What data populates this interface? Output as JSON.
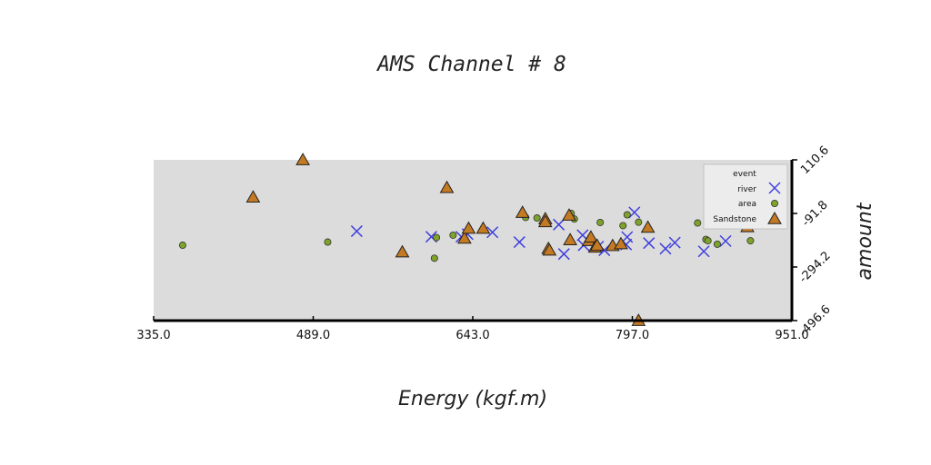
{
  "chart_data": {
    "type": "scatter",
    "title": "AMS Channel # 8",
    "xlabel": "Energy (kgf.m)",
    "ylabel": "amount",
    "xlim": [
      335.0,
      951.0
    ],
    "ylim": [
      -496.6,
      110.6
    ],
    "xticks": [
      "335.0",
      "489.0",
      "643.0",
      "797.0",
      "951.0"
    ],
    "yticks": [
      "110.6",
      "-91.8",
      "-294.2",
      "-496.6"
    ],
    "xtick_values": [
      335.0,
      489.0,
      643.0,
      797.0,
      951.0
    ],
    "ytick_values": [
      110.6,
      -91.8,
      -294.2,
      -496.6
    ],
    "grid": false,
    "background": "#dcdcdc",
    "legend": {
      "title": "event",
      "position": "top-right"
    },
    "series": [
      {
        "name": "river",
        "marker": "x",
        "color": "#4040dd",
        "points": [
          [
            531,
            -159
          ],
          [
            603,
            -180
          ],
          [
            632,
            -180
          ],
          [
            638,
            -170
          ],
          [
            662,
            -163
          ],
          [
            688,
            -200
          ],
          [
            726,
            -134
          ],
          [
            731,
            -245
          ],
          [
            749,
            -174
          ],
          [
            750,
            -212
          ],
          [
            764,
            -217
          ],
          [
            770,
            -231
          ],
          [
            791,
            -209
          ],
          [
            792,
            -181
          ],
          [
            799,
            -88
          ],
          [
            813,
            -204
          ],
          [
            829,
            -225
          ],
          [
            838,
            -202
          ],
          [
            866,
            -235
          ],
          [
            887,
            -196
          ]
        ]
      },
      {
        "name": "area",
        "marker": "o",
        "color": "#7da32a",
        "points": [
          [
            363,
            -212
          ],
          [
            503,
            -200
          ],
          [
            606,
            -261
          ],
          [
            608,
            -183
          ],
          [
            624,
            -174
          ],
          [
            694,
            -107
          ],
          [
            705,
            -109
          ],
          [
            738,
            -92
          ],
          [
            741,
            -113
          ],
          [
            766,
            -126
          ],
          [
            788,
            -138
          ],
          [
            792,
            -97
          ],
          [
            803,
            -125
          ],
          [
            860,
            -128
          ],
          [
            868,
            -190
          ],
          [
            870,
            -195
          ],
          [
            877,
            -75
          ],
          [
            879,
            -208
          ],
          [
            888,
            -126
          ],
          [
            911,
            -195
          ],
          [
            924,
            -116
          ]
        ]
      },
      {
        "name": "Sandstone",
        "marker": "^",
        "color": "#c47a22",
        "points": [
          [
            431,
            -31
          ],
          [
            479,
            110
          ],
          [
            575,
            -238
          ],
          [
            618,
            5
          ],
          [
            635,
            -186
          ],
          [
            639,
            -149
          ],
          [
            653,
            -149
          ],
          [
            691,
            -89
          ],
          [
            713,
            -113
          ],
          [
            713,
            -124
          ],
          [
            716,
            -225
          ],
          [
            717,
            -231
          ],
          [
            736,
            -99
          ],
          [
            737,
            -192
          ],
          [
            755,
            -195
          ],
          [
            757,
            -182
          ],
          [
            761,
            -220
          ],
          [
            763,
            -213
          ],
          [
            778,
            -214
          ],
          [
            786,
            -207
          ],
          [
            803,
            -497
          ],
          [
            812,
            -145
          ],
          [
            880,
            -118
          ],
          [
            908,
            -143
          ]
        ]
      }
    ]
  }
}
